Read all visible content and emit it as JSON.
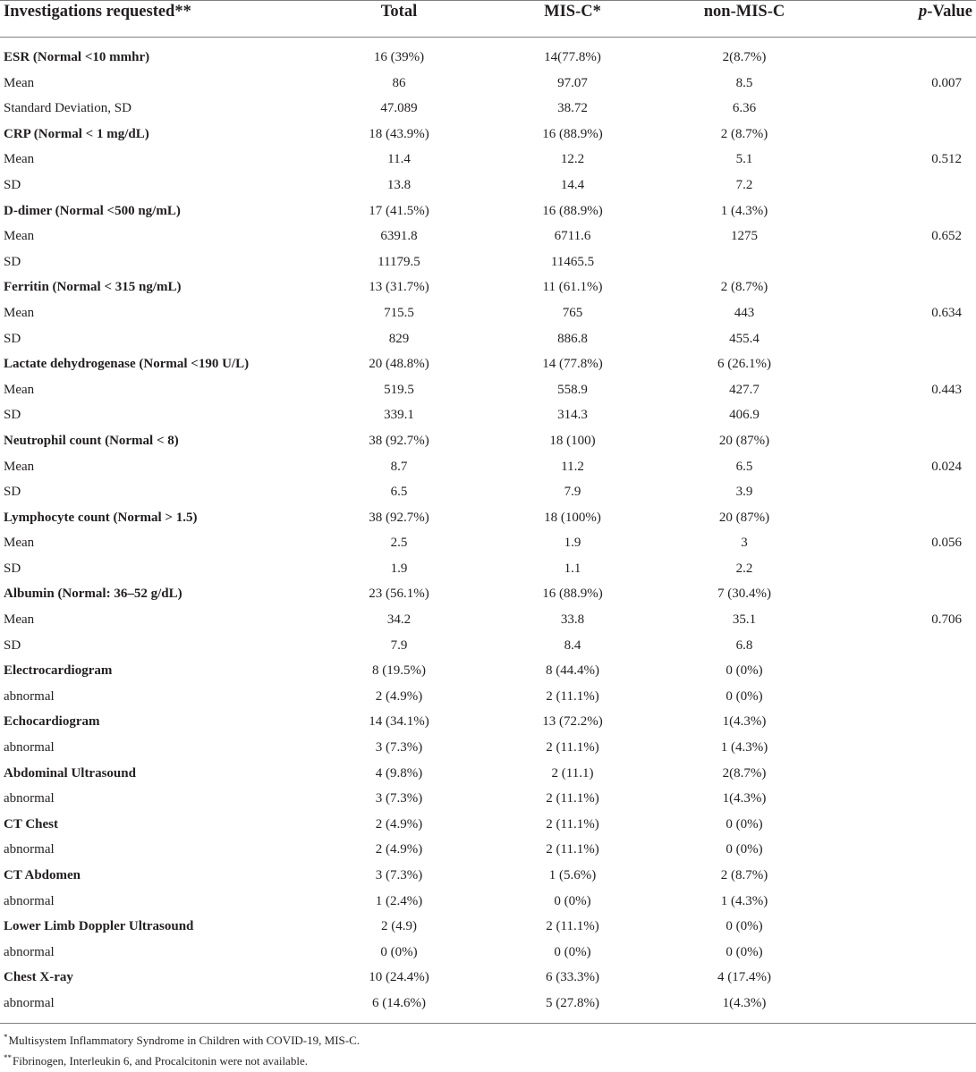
{
  "header": {
    "col0": "Investigations requested**",
    "col1": "Total",
    "col2": "MIS-C*",
    "col3": "non-MIS-C",
    "col4_italic": "p",
    "col4_rest": "-Value"
  },
  "rows": [
    {
      "kind": "group",
      "label": "ESR (Normal <10 mmhr)",
      "total": "16 (39%)",
      "misc": "14(77.8%)",
      "nonmisc": "2(8.7%)",
      "p": ""
    },
    {
      "kind": "sub",
      "label": "Mean",
      "total": "86",
      "misc": "97.07",
      "nonmisc": "8.5",
      "p": "0.007"
    },
    {
      "kind": "sub",
      "label": "Standard Deviation, SD",
      "total": "47.089",
      "misc": "38.72",
      "nonmisc": "6.36",
      "p": ""
    },
    {
      "kind": "group",
      "label": "CRP (Normal < 1 mg/dL)",
      "total": "18 (43.9%)",
      "misc": "16 (88.9%)",
      "nonmisc": "2 (8.7%)",
      "p": ""
    },
    {
      "kind": "sub",
      "label": "Mean",
      "total": "11.4",
      "misc": "12.2",
      "nonmisc": "5.1",
      "p": "0.512"
    },
    {
      "kind": "sub",
      "label": "SD",
      "total": "13.8",
      "misc": "14.4",
      "nonmisc": "7.2",
      "p": ""
    },
    {
      "kind": "group",
      "label": "D-dimer (Normal <500 ng/mL)",
      "total": "17 (41.5%)",
      "misc": "16 (88.9%)",
      "nonmisc": "1 (4.3%)",
      "p": ""
    },
    {
      "kind": "sub",
      "label": "Mean",
      "total": "6391.8",
      "misc": "6711.6",
      "nonmisc": "1275",
      "p": "0.652"
    },
    {
      "kind": "sub",
      "label": "SD",
      "total": "11179.5",
      "misc": "11465.5",
      "nonmisc": "",
      "p": ""
    },
    {
      "kind": "group",
      "label": "Ferritin (Normal < 315 ng/mL)",
      "total": "13 (31.7%)",
      "misc": "11 (61.1%)",
      "nonmisc": "2 (8.7%)",
      "p": ""
    },
    {
      "kind": "sub",
      "label": "Mean",
      "total": "715.5",
      "misc": "765",
      "nonmisc": "443",
      "p": "0.634"
    },
    {
      "kind": "sub",
      "label": "SD",
      "total": "829",
      "misc": "886.8",
      "nonmisc": "455.4",
      "p": ""
    },
    {
      "kind": "group",
      "label": "Lactate dehydrogenase (Normal <190 U/L)",
      "total": "20 (48.8%)",
      "misc": "14 (77.8%)",
      "nonmisc": "6 (26.1%)",
      "p": ""
    },
    {
      "kind": "sub",
      "label": "Mean",
      "total": "519.5",
      "misc": "558.9",
      "nonmisc": "427.7",
      "p": "0.443"
    },
    {
      "kind": "sub",
      "label": "SD",
      "total": "339.1",
      "misc": "314.3",
      "nonmisc": "406.9",
      "p": ""
    },
    {
      "kind": "group",
      "label": "Neutrophil count (Normal < 8)",
      "total": "38 (92.7%)",
      "misc": "18 (100)",
      "nonmisc": "20 (87%)",
      "p": ""
    },
    {
      "kind": "sub",
      "label": "Mean",
      "total": "8.7",
      "misc": "11.2",
      "nonmisc": "6.5",
      "p": "0.024"
    },
    {
      "kind": "sub",
      "label": "SD",
      "total": "6.5",
      "misc": "7.9",
      "nonmisc": "3.9",
      "p": ""
    },
    {
      "kind": "group",
      "label": "Lymphocyte count (Normal > 1.5)",
      "total": "38 (92.7%)",
      "misc": "18 (100%)",
      "nonmisc": "20 (87%)",
      "p": ""
    },
    {
      "kind": "sub",
      "label": "Mean",
      "total": "2.5",
      "misc": "1.9",
      "nonmisc": "3",
      "p": "0.056"
    },
    {
      "kind": "sub",
      "label": "SD",
      "total": "1.9",
      "misc": "1.1",
      "nonmisc": "2.2",
      "p": ""
    },
    {
      "kind": "group",
      "label": "Albumin (Normal: 36–52 g/dL)",
      "total": "23 (56.1%)",
      "misc": "16 (88.9%)",
      "nonmisc": "7 (30.4%)",
      "p": ""
    },
    {
      "kind": "sub",
      "label": "Mean",
      "total": "34.2",
      "misc": "33.8",
      "nonmisc": "35.1",
      "p": "0.706"
    },
    {
      "kind": "sub",
      "label": "SD",
      "total": "7.9",
      "misc": "8.4",
      "nonmisc": "6.8",
      "p": ""
    },
    {
      "kind": "group",
      "label": "Electrocardiogram",
      "total": "8 (19.5%)",
      "misc": "8 (44.4%)",
      "nonmisc": "0 (0%)",
      "p": ""
    },
    {
      "kind": "sub",
      "label": "abnormal",
      "total": "2 (4.9%)",
      "misc": "2 (11.1%)",
      "nonmisc": "0 (0%)",
      "p": ""
    },
    {
      "kind": "group",
      "label": "Echocardiogram",
      "total": "14 (34.1%)",
      "misc": "13 (72.2%)",
      "nonmisc": "1(4.3%)",
      "p": ""
    },
    {
      "kind": "sub",
      "label": "abnormal",
      "total": "3 (7.3%)",
      "misc": "2 (11.1%)",
      "nonmisc": "1 (4.3%)",
      "p": ""
    },
    {
      "kind": "group",
      "label": "Abdominal Ultrasound",
      "total": "4 (9.8%)",
      "misc": "2 (11.1)",
      "nonmisc": "2(8.7%)",
      "p": ""
    },
    {
      "kind": "sub",
      "label": "abnormal",
      "total": "3 (7.3%)",
      "misc": "2 (11.1%)",
      "nonmisc": "1(4.3%)",
      "p": ""
    },
    {
      "kind": "group",
      "label": "CT Chest",
      "total": "2 (4.9%)",
      "misc": "2 (11.1%)",
      "nonmisc": "0 (0%)",
      "p": ""
    },
    {
      "kind": "sub",
      "label": "abnormal",
      "total": "2 (4.9%)",
      "misc": "2 (11.1%)",
      "nonmisc": "0 (0%)",
      "p": ""
    },
    {
      "kind": "group",
      "label": "CT Abdomen",
      "total": "3 (7.3%)",
      "misc": "1 (5.6%)",
      "nonmisc": "2 (8.7%)",
      "p": ""
    },
    {
      "kind": "sub",
      "label": "abnormal",
      "total": "1 (2.4%)",
      "misc": "0 (0%)",
      "nonmisc": "1 (4.3%)",
      "p": ""
    },
    {
      "kind": "group",
      "label": "Lower Limb Doppler Ultrasound",
      "total": "2 (4.9)",
      "misc": "2 (11.1%)",
      "nonmisc": "0 (0%)",
      "p": ""
    },
    {
      "kind": "sub",
      "label": "abnormal",
      "total": "0 (0%)",
      "misc": "0 (0%)",
      "nonmisc": "0 (0%)",
      "p": ""
    },
    {
      "kind": "group",
      "label": "Chest X-ray",
      "total": "10 (24.4%)",
      "misc": "6 (33.3%)",
      "nonmisc": "4 (17.4%)",
      "p": ""
    },
    {
      "kind": "sub",
      "label": "abnormal",
      "total": "6 (14.6%)",
      "misc": "5 (27.8%)",
      "nonmisc": "1(4.3%)",
      "p": ""
    }
  ],
  "footnotes": [
    {
      "mark": "*",
      "text": "Multisystem Inflammatory Syndrome in Children with COVID-19, MIS-C."
    },
    {
      "mark": "**",
      "text": "Fibrinogen, Interleukin 6, and Procalcitonin were not available."
    }
  ]
}
